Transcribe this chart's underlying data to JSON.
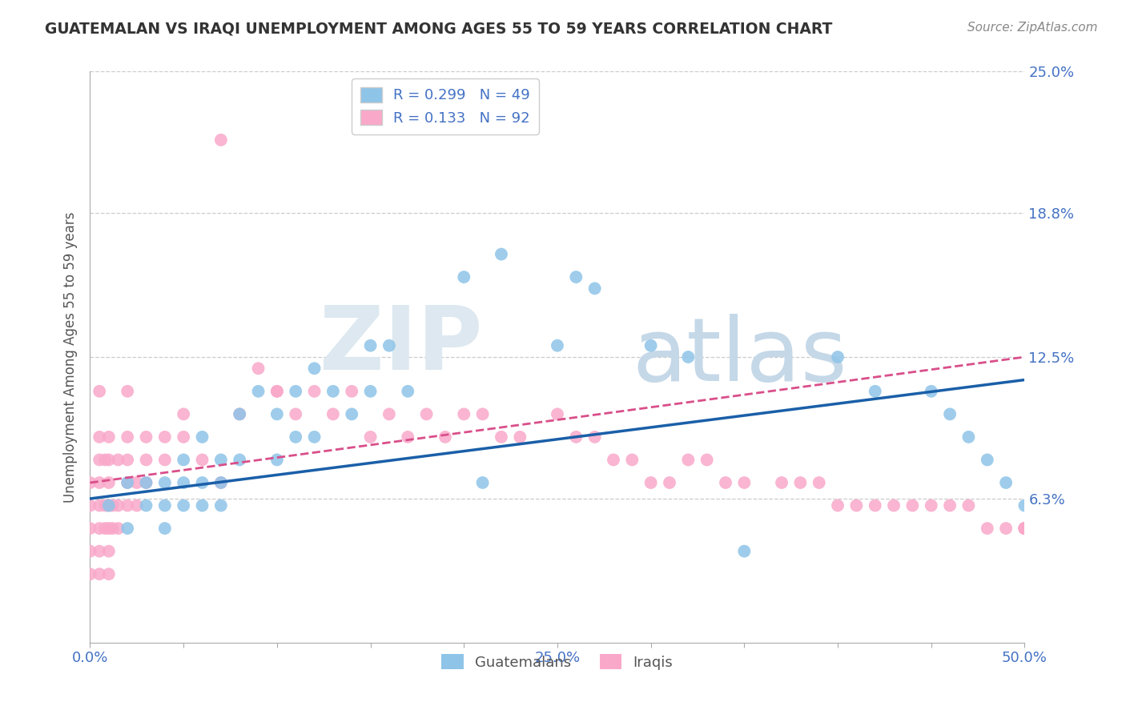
{
  "title": "GUATEMALAN VS IRAQI UNEMPLOYMENT AMONG AGES 55 TO 59 YEARS CORRELATION CHART",
  "source": "Source: ZipAtlas.com",
  "ylabel": "Unemployment Among Ages 55 to 59 years",
  "xlim": [
    0.0,
    0.5
  ],
  "ylim": [
    0.0,
    0.25
  ],
  "ytick_positions": [
    0.0,
    0.063,
    0.125,
    0.188,
    0.25
  ],
  "ytick_labels": [
    "",
    "6.3%",
    "12.5%",
    "18.8%",
    "25.0%"
  ],
  "xtick_labels": [
    "0.0%",
    "",
    "",
    "",
    "",
    "25.0%",
    "",
    "",
    "",
    "",
    "50.0%"
  ],
  "legend_entries": [
    {
      "label": "R = 0.299   N = 49",
      "color": "#8ec4e8"
    },
    {
      "label": "R = 0.133   N = 92",
      "color": "#f9a8c9"
    }
  ],
  "legend_bottom": [
    "Guatemalans",
    "Iraqis"
  ],
  "guatemalan_color": "#8ec4e8",
  "iraqi_color": "#f9a8c9",
  "guatemalan_line_color": "#1a5fa8",
  "iraqi_line_color": "#d94f8a",
  "background_color": "#ffffff",
  "guatemalan_x": [
    0.01,
    0.02,
    0.02,
    0.03,
    0.03,
    0.04,
    0.04,
    0.04,
    0.05,
    0.05,
    0.05,
    0.06,
    0.06,
    0.06,
    0.07,
    0.07,
    0.07,
    0.08,
    0.08,
    0.09,
    0.1,
    0.1,
    0.11,
    0.11,
    0.12,
    0.12,
    0.13,
    0.14,
    0.15,
    0.15,
    0.16,
    0.17,
    0.2,
    0.21,
    0.22,
    0.25,
    0.26,
    0.27,
    0.3,
    0.32,
    0.35,
    0.4,
    0.42,
    0.45,
    0.46,
    0.47,
    0.48,
    0.49,
    0.5
  ],
  "guatemalan_y": [
    0.06,
    0.07,
    0.05,
    0.06,
    0.07,
    0.06,
    0.07,
    0.05,
    0.07,
    0.06,
    0.08,
    0.07,
    0.09,
    0.06,
    0.07,
    0.08,
    0.06,
    0.1,
    0.08,
    0.11,
    0.1,
    0.08,
    0.09,
    0.11,
    0.12,
    0.09,
    0.11,
    0.1,
    0.13,
    0.11,
    0.13,
    0.11,
    0.16,
    0.07,
    0.17,
    0.13,
    0.16,
    0.155,
    0.13,
    0.125,
    0.04,
    0.125,
    0.11,
    0.11,
    0.1,
    0.09,
    0.08,
    0.07,
    0.06
  ],
  "iraqi_x": [
    0.0,
    0.0,
    0.0,
    0.0,
    0.0,
    0.005,
    0.005,
    0.005,
    0.005,
    0.005,
    0.005,
    0.005,
    0.005,
    0.008,
    0.008,
    0.008,
    0.01,
    0.01,
    0.01,
    0.01,
    0.01,
    0.01,
    0.01,
    0.012,
    0.012,
    0.015,
    0.015,
    0.015,
    0.02,
    0.02,
    0.02,
    0.02,
    0.02,
    0.025,
    0.025,
    0.03,
    0.03,
    0.03,
    0.04,
    0.04,
    0.05,
    0.05,
    0.06,
    0.07,
    0.07,
    0.08,
    0.09,
    0.1,
    0.1,
    0.11,
    0.12,
    0.13,
    0.14,
    0.15,
    0.16,
    0.17,
    0.18,
    0.19,
    0.2,
    0.21,
    0.22,
    0.23,
    0.25,
    0.26,
    0.27,
    0.28,
    0.29,
    0.3,
    0.31,
    0.32,
    0.33,
    0.34,
    0.35,
    0.37,
    0.38,
    0.39,
    0.4,
    0.41,
    0.42,
    0.43,
    0.44,
    0.45,
    0.46,
    0.47,
    0.48,
    0.49,
    0.5,
    0.5,
    0.5,
    0.5,
    0.5,
    0.5
  ],
  "iraqi_y": [
    0.04,
    0.05,
    0.06,
    0.07,
    0.03,
    0.04,
    0.05,
    0.06,
    0.07,
    0.08,
    0.09,
    0.11,
    0.03,
    0.05,
    0.06,
    0.08,
    0.04,
    0.05,
    0.06,
    0.07,
    0.08,
    0.09,
    0.03,
    0.05,
    0.06,
    0.05,
    0.06,
    0.08,
    0.06,
    0.07,
    0.08,
    0.09,
    0.11,
    0.06,
    0.07,
    0.07,
    0.08,
    0.09,
    0.08,
    0.09,
    0.09,
    0.1,
    0.08,
    0.07,
    0.22,
    0.1,
    0.12,
    0.11,
    0.11,
    0.1,
    0.11,
    0.1,
    0.11,
    0.09,
    0.1,
    0.09,
    0.1,
    0.09,
    0.1,
    0.1,
    0.09,
    0.09,
    0.1,
    0.09,
    0.09,
    0.08,
    0.08,
    0.07,
    0.07,
    0.08,
    0.08,
    0.07,
    0.07,
    0.07,
    0.07,
    0.07,
    0.06,
    0.06,
    0.06,
    0.06,
    0.06,
    0.06,
    0.06,
    0.06,
    0.05,
    0.05,
    0.05,
    0.05,
    0.05,
    0.05,
    0.05,
    0.05
  ],
  "guat_line_x": [
    0.0,
    0.5
  ],
  "guat_line_y": [
    0.063,
    0.115
  ],
  "iraqi_line_x": [
    0.0,
    0.5
  ],
  "iraqi_line_y": [
    0.07,
    0.125
  ],
  "watermark_zip_color": "#dde8f0",
  "watermark_atlas_color": "#c5d8e8",
  "title_color": "#333333",
  "source_color": "#888888",
  "axis_label_color": "#555555",
  "tick_label_color": "#4472c4",
  "grid_color": "#cccccc",
  "legend_text_color": "#4472c4"
}
